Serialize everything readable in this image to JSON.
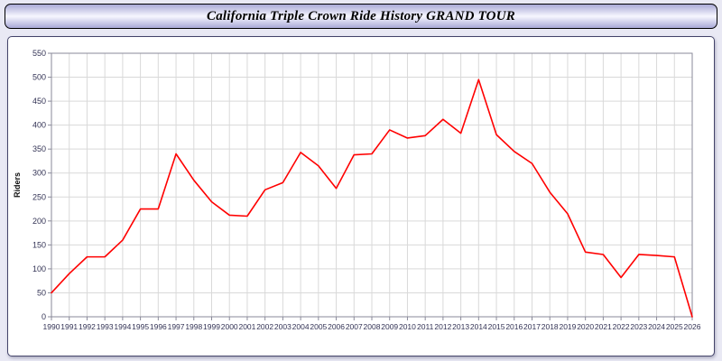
{
  "title": "California Triple Crown Ride History GRAND TOUR",
  "chart_data": {
    "type": "line",
    "title": "California Triple Crown Ride History GRAND TOUR",
    "xlabel": "",
    "ylabel": "Riders",
    "ylim": [
      0,
      550
    ],
    "ytick_step": 50,
    "grid": true,
    "legend_position": "none",
    "x": [
      1990,
      1991,
      1992,
      1993,
      1994,
      1995,
      1996,
      1997,
      1998,
      1999,
      2000,
      2001,
      2002,
      2003,
      2004,
      2005,
      2006,
      2007,
      2008,
      2009,
      2010,
      2011,
      2012,
      2013,
      2014,
      2015,
      2016,
      2017,
      2018,
      2019,
      2020,
      2021,
      2022,
      2023,
      2024,
      2025,
      2026
    ],
    "series": [
      {
        "name": "Riders",
        "color": "#ff0000",
        "values": [
          50,
          90,
          125,
          125,
          160,
          225,
          225,
          340,
          285,
          240,
          212,
          210,
          265,
          280,
          343,
          315,
          268,
          338,
          340,
          390,
          373,
          378,
          412,
          383,
          495,
          380,
          345,
          320,
          260,
          215,
          135,
          130,
          82,
          130,
          128,
          125,
          0
        ]
      }
    ]
  },
  "colors": {
    "line": "#ff0000",
    "grid": "#d9d9d9",
    "axis_line": "#8a8a9a",
    "axis_text": "#333355",
    "y_axis_title": "#111111",
    "page_background": "#e9e9f4",
    "panel_background": "#ffffff"
  }
}
